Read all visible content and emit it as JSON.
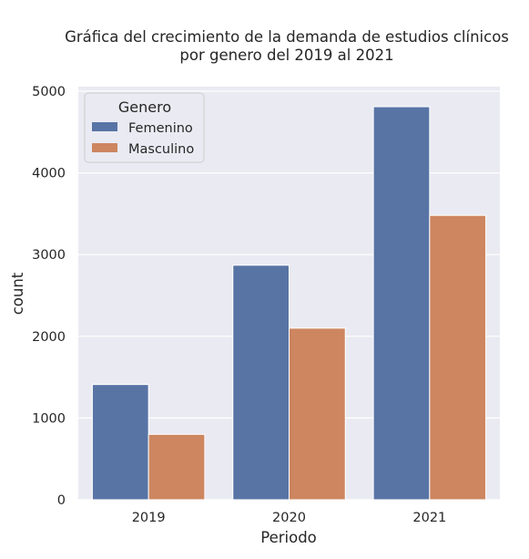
{
  "chart_data": {
    "type": "bar",
    "title": "Gráfica del crecimiento de la demanda de estudios clínicos por genero del 2019 al 2021",
    "title_lines": [
      "Gráfica del crecimiento de la demanda de estudios clínicos",
      "por genero del 2019 al 2021"
    ],
    "xlabel": "Periodo",
    "ylabel": "count",
    "categories": [
      "2019",
      "2020",
      "2021"
    ],
    "series": [
      {
        "name": "Femenino",
        "values": [
          1410,
          2870,
          4810
        ]
      },
      {
        "name": "Masculino",
        "values": [
          800,
          2100,
          3480
        ]
      }
    ],
    "ylim": [
      0,
      5000
    ],
    "yticks": [
      0,
      1000,
      2000,
      3000,
      4000,
      5000
    ],
    "grid": true,
    "legend": {
      "title": "Genero",
      "position": "top-left"
    },
    "colors": {
      "Femenino": "#5874a5",
      "Masculino": "#cd8660",
      "background": "#eaeaf2",
      "grid": "#ffffff"
    }
  }
}
